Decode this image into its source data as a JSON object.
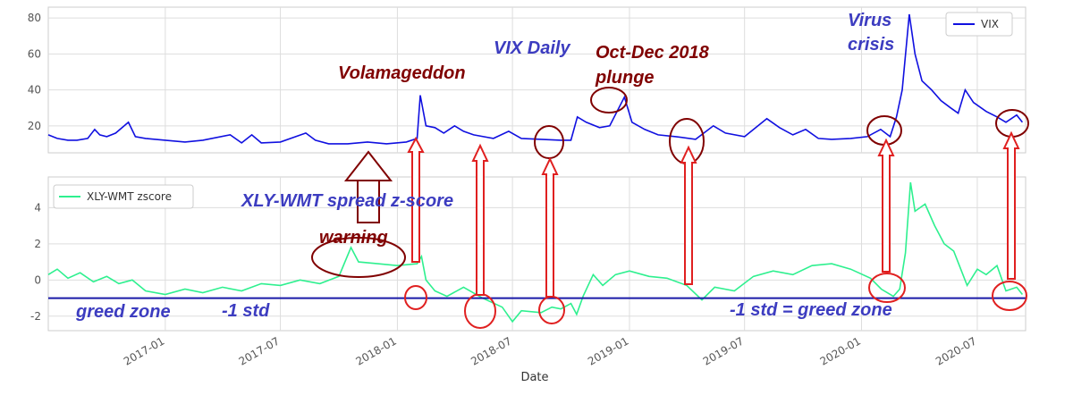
{
  "chart_data": [
    {
      "type": "line",
      "title": "",
      "xlabel": "",
      "ylabel": "",
      "ylim": [
        5,
        86
      ],
      "yticks": [
        20,
        40,
        60,
        80
      ],
      "x_range": [
        "2016-07",
        "2020-09"
      ],
      "legend_position": "top-right",
      "grid": true,
      "series": [
        {
          "name": "VIX",
          "color": "#1010e0",
          "points": [
            [
              "2016-07-01",
              15
            ],
            [
              "2016-07-15",
              13
            ],
            [
              "2016-08-01",
              12
            ],
            [
              "2016-08-15",
              12
            ],
            [
              "2016-09-01",
              13
            ],
            [
              "2016-09-12",
              18
            ],
            [
              "2016-09-20",
              15
            ],
            [
              "2016-10-01",
              14
            ],
            [
              "2016-10-15",
              16
            ],
            [
              "2016-11-04",
              22
            ],
            [
              "2016-11-15",
              14
            ],
            [
              "2016-12-01",
              13
            ],
            [
              "2017-01-01",
              12
            ],
            [
              "2017-02-01",
              11
            ],
            [
              "2017-03-01",
              12
            ],
            [
              "2017-04-13",
              15
            ],
            [
              "2017-05-01",
              10.5
            ],
            [
              "2017-05-17",
              15
            ],
            [
              "2017-06-01",
              10.5
            ],
            [
              "2017-07-01",
              11
            ],
            [
              "2017-08-10",
              16
            ],
            [
              "2017-08-25",
              12
            ],
            [
              "2017-09-15",
              10
            ],
            [
              "2017-10-15",
              10
            ],
            [
              "2017-11-15",
              11
            ],
            [
              "2017-12-15",
              10
            ],
            [
              "2018-01-15",
              11
            ],
            [
              "2018-02-01",
              13
            ],
            [
              "2018-02-06",
              37
            ],
            [
              "2018-02-15",
              20
            ],
            [
              "2018-03-01",
              19
            ],
            [
              "2018-03-15",
              16
            ],
            [
              "2018-04-01",
              20
            ],
            [
              "2018-04-15",
              17
            ],
            [
              "2018-05-01",
              15
            ],
            [
              "2018-06-01",
              13
            ],
            [
              "2018-06-25",
              17
            ],
            [
              "2018-07-15",
              13
            ],
            [
              "2018-08-15",
              12.5
            ],
            [
              "2018-09-15",
              12
            ],
            [
              "2018-10-01",
              12
            ],
            [
              "2018-10-11",
              25
            ],
            [
              "2018-10-25",
              22
            ],
            [
              "2018-11-15",
              19
            ],
            [
              "2018-12-01",
              20
            ],
            [
              "2018-12-24",
              36
            ],
            [
              "2019-01-05",
              22
            ],
            [
              "2019-01-25",
              18
            ],
            [
              "2019-02-15",
              15
            ],
            [
              "2019-03-15",
              14
            ],
            [
              "2019-04-15",
              12.5
            ],
            [
              "2019-05-13",
              20
            ],
            [
              "2019-06-01",
              16
            ],
            [
              "2019-07-01",
              14
            ],
            [
              "2019-08-05",
              24
            ],
            [
              "2019-08-25",
              19
            ],
            [
              "2019-09-15",
              15
            ],
            [
              "2019-10-05",
              18
            ],
            [
              "2019-10-25",
              13
            ],
            [
              "2019-11-15",
              12.5
            ],
            [
              "2019-12-15",
              13
            ],
            [
              "2020-01-10",
              14
            ],
            [
              "2020-01-31",
              18
            ],
            [
              "2020-02-15",
              14
            ],
            [
              "2020-02-25",
              25
            ],
            [
              "2020-03-05",
              40
            ],
            [
              "2020-03-16",
              82
            ],
            [
              "2020-03-25",
              60
            ],
            [
              "2020-04-05",
              45
            ],
            [
              "2020-04-20",
              40
            ],
            [
              "2020-05-05",
              34
            ],
            [
              "2020-05-20",
              30
            ],
            [
              "2020-06-01",
              27
            ],
            [
              "2020-06-12",
              40
            ],
            [
              "2020-06-25",
              33
            ],
            [
              "2020-07-15",
              28
            ],
            [
              "2020-08-01",
              25
            ],
            [
              "2020-08-15",
              22
            ],
            [
              "2020-09-01",
              26
            ],
            [
              "2020-09-10",
              22
            ]
          ]
        }
      ]
    },
    {
      "type": "line",
      "title": "",
      "xlabel": "Date",
      "ylabel": "",
      "ylim": [
        -2.8,
        5.7
      ],
      "yticks": [
        -2,
        0,
        2,
        4
      ],
      "x_range": [
        "2016-07",
        "2020-09"
      ],
      "x_tick_labels": [
        "2017-01",
        "2017-07",
        "2018-01",
        "2018-07",
        "2019-01",
        "2019-07",
        "2020-01",
        "2020-07"
      ],
      "legend_position": "top-left",
      "grid": true,
      "reference_line": {
        "y": -1,
        "color": "#1a1aa8"
      },
      "series": [
        {
          "name": "XLY-WMT zscore",
          "color": "#2ef08f",
          "points": [
            [
              "2016-07-01",
              0.3
            ],
            [
              "2016-07-15",
              0.6
            ],
            [
              "2016-08-01",
              0.1
            ],
            [
              "2016-08-20",
              0.4
            ],
            [
              "2016-09-10",
              -0.1
            ],
            [
              "2016-10-01",
              0.2
            ],
            [
              "2016-10-20",
              -0.2
            ],
            [
              "2016-11-10",
              0.0
            ],
            [
              "2016-12-01",
              -0.6
            ],
            [
              "2017-01-01",
              -0.8
            ],
            [
              "2017-02-01",
              -0.5
            ],
            [
              "2017-03-01",
              -0.7
            ],
            [
              "2017-04-01",
              -0.4
            ],
            [
              "2017-05-01",
              -0.6
            ],
            [
              "2017-06-01",
              -0.2
            ],
            [
              "2017-07-01",
              -0.3
            ],
            [
              "2017-08-01",
              0.0
            ],
            [
              "2017-09-01",
              -0.2
            ],
            [
              "2017-10-01",
              0.2
            ],
            [
              "2017-10-20",
              1.8
            ],
            [
              "2017-11-01",
              1.0
            ],
            [
              "2017-12-01",
              0.9
            ],
            [
              "2018-01-01",
              0.8
            ],
            [
              "2018-02-01",
              0.9
            ],
            [
              "2018-02-08",
              1.3
            ],
            [
              "2018-02-15",
              0.0
            ],
            [
              "2018-03-01",
              -0.6
            ],
            [
              "2018-03-20",
              -0.9
            ],
            [
              "2018-04-15",
              -0.4
            ],
            [
              "2018-05-15",
              -1.0
            ],
            [
              "2018-06-15",
              -1.5
            ],
            [
              "2018-07-01",
              -2.3
            ],
            [
              "2018-07-15",
              -1.7
            ],
            [
              "2018-08-15",
              -1.8
            ],
            [
              "2018-09-01",
              -1.5
            ],
            [
              "2018-09-15",
              -1.6
            ],
            [
              "2018-10-01",
              -1.3
            ],
            [
              "2018-10-10",
              -1.9
            ],
            [
              "2018-10-20",
              -0.9
            ],
            [
              "2018-11-05",
              0.3
            ],
            [
              "2018-11-20",
              -0.3
            ],
            [
              "2018-12-10",
              0.3
            ],
            [
              "2019-01-01",
              0.5
            ],
            [
              "2019-02-01",
              0.2
            ],
            [
              "2019-03-01",
              0.1
            ],
            [
              "2019-04-01",
              -0.3
            ],
            [
              "2019-04-25",
              -1.1
            ],
            [
              "2019-05-15",
              -0.4
            ],
            [
              "2019-06-15",
              -0.6
            ],
            [
              "2019-07-15",
              0.2
            ],
            [
              "2019-08-15",
              0.5
            ],
            [
              "2019-09-15",
              0.3
            ],
            [
              "2019-10-15",
              0.8
            ],
            [
              "2019-11-15",
              0.9
            ],
            [
              "2019-12-15",
              0.6
            ],
            [
              "2020-01-15",
              0.1
            ],
            [
              "2020-02-01",
              -0.5
            ],
            [
              "2020-02-20",
              -0.9
            ],
            [
              "2020-03-01",
              -0.5
            ],
            [
              "2020-03-10",
              1.5
            ],
            [
              "2020-03-18",
              5.4
            ],
            [
              "2020-03-25",
              3.8
            ],
            [
              "2020-04-10",
              4.2
            ],
            [
              "2020-04-25",
              3.0
            ],
            [
              "2020-05-10",
              2.0
            ],
            [
              "2020-05-25",
              1.6
            ],
            [
              "2020-06-05",
              0.6
            ],
            [
              "2020-06-15",
              -0.3
            ],
            [
              "2020-07-01",
              0.6
            ],
            [
              "2020-07-15",
              0.3
            ],
            [
              "2020-08-01",
              0.8
            ],
            [
              "2020-08-15",
              -0.6
            ],
            [
              "2020-09-01",
              -0.4
            ],
            [
              "2020-09-10",
              -0.8
            ]
          ]
        }
      ]
    }
  ],
  "annotations": {
    "volamageddon": "Volamageddon",
    "vix_daily": "VIX Daily",
    "oct_dec_line1": "Oct-Dec 2018",
    "oct_dec_line2": "plunge",
    "virus_line1": "Virus",
    "virus_line2": "crisis",
    "spread_zscore": "XLY-WMT spread z-score",
    "warning": "warning",
    "greed_zone": "greed zone",
    "minus_one_std": "-1 std",
    "std_greed_zone": "-1 std = greed zone"
  },
  "annotation_colors": {
    "dark_red": "#800000",
    "blue": "#3c3cc0",
    "arrow_red": "#e02020"
  }
}
